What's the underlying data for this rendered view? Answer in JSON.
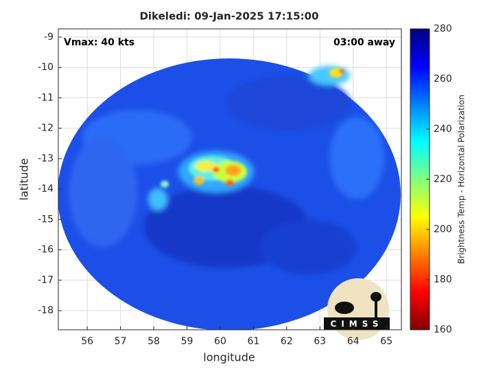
{
  "chart_data": {
    "type": "image",
    "title": "Dikeledi: 09-Jan-2025 17:15:00",
    "annotations": [
      "Vmax: 40 kts",
      "03:00 away"
    ],
    "xlabel": "longitude",
    "ylabel": "latitude",
    "xlim": [
      55.13,
      65.45
    ],
    "ylim": [
      -18.63,
      -8.73
    ],
    "xticks": [
      56,
      57,
      58,
      59,
      60,
      61,
      62,
      63,
      64,
      65
    ],
    "yticks": [
      -9,
      -10,
      -11,
      -12,
      -13,
      -14,
      -15,
      -16,
      -17,
      -18
    ],
    "grid": true,
    "colorbar": {
      "label": "Brightness Temp - Horizontal Polarization",
      "lim": [
        160,
        280
      ],
      "ticks": [
        160,
        180,
        200,
        220,
        240,
        260,
        280
      ],
      "colormap": "jet"
    },
    "logo": "CIMSS"
  }
}
